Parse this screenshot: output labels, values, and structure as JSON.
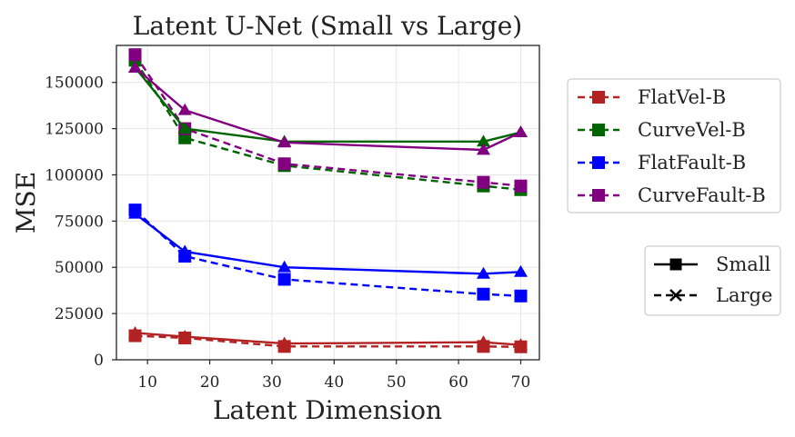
{
  "chart_data": {
    "type": "line",
    "title": "Latent U-Net (Small vs Large)",
    "xlabel": "Latent Dimension",
    "ylabel": "MSE",
    "xlim": [
      5,
      73
    ],
    "ylim": [
      0,
      170000
    ],
    "x_ticks": [
      10,
      20,
      30,
      40,
      50,
      60,
      70
    ],
    "y_ticks": [
      0,
      25000,
      50000,
      75000,
      100000,
      125000,
      150000
    ],
    "x": [
      8,
      16,
      32,
      64,
      70
    ],
    "grid": true,
    "datasets": [
      {
        "name": "FlatVel-B",
        "color": "#b22222"
      },
      {
        "name": "CurveVel-B",
        "color": "#006400"
      },
      {
        "name": "FlatFault-B",
        "color": "#0000ff"
      },
      {
        "name": "CurveFault-B",
        "color": "#800080"
      }
    ],
    "model_sizes": [
      {
        "name": "Small",
        "line_style": "solid",
        "marker": "triangle"
      },
      {
        "name": "Large",
        "line_style": "dashed",
        "marker": "square"
      }
    ],
    "series": [
      {
        "dataset": "FlatVel-B",
        "size": "Small",
        "values": [
          14500,
          12500,
          8800,
          9500,
          8000
        ]
      },
      {
        "dataset": "FlatVel-B",
        "size": "Large",
        "values": [
          13000,
          11800,
          7200,
          7200,
          7000
        ]
      },
      {
        "dataset": "CurveVel-B",
        "size": "Small",
        "values": [
          158000,
          125000,
          118000,
          118000,
          123000
        ]
      },
      {
        "dataset": "CurveVel-B",
        "size": "Large",
        "values": [
          162000,
          120000,
          105000,
          94000,
          92000
        ]
      },
      {
        "dataset": "FlatFault-B",
        "size": "Small",
        "values": [
          79000,
          58500,
          50000,
          46500,
          47500
        ]
      },
      {
        "dataset": "FlatFault-B",
        "size": "Large",
        "values": [
          81000,
          56000,
          43500,
          35500,
          34500
        ]
      },
      {
        "dataset": "CurveFault-B",
        "size": "Small",
        "values": [
          158000,
          135000,
          117500,
          113500,
          123000
        ]
      },
      {
        "dataset": "CurveFault-B",
        "size": "Large",
        "values": [
          165000,
          125000,
          106000,
          96000,
          94000
        ]
      }
    ],
    "legend_placement": "right"
  }
}
